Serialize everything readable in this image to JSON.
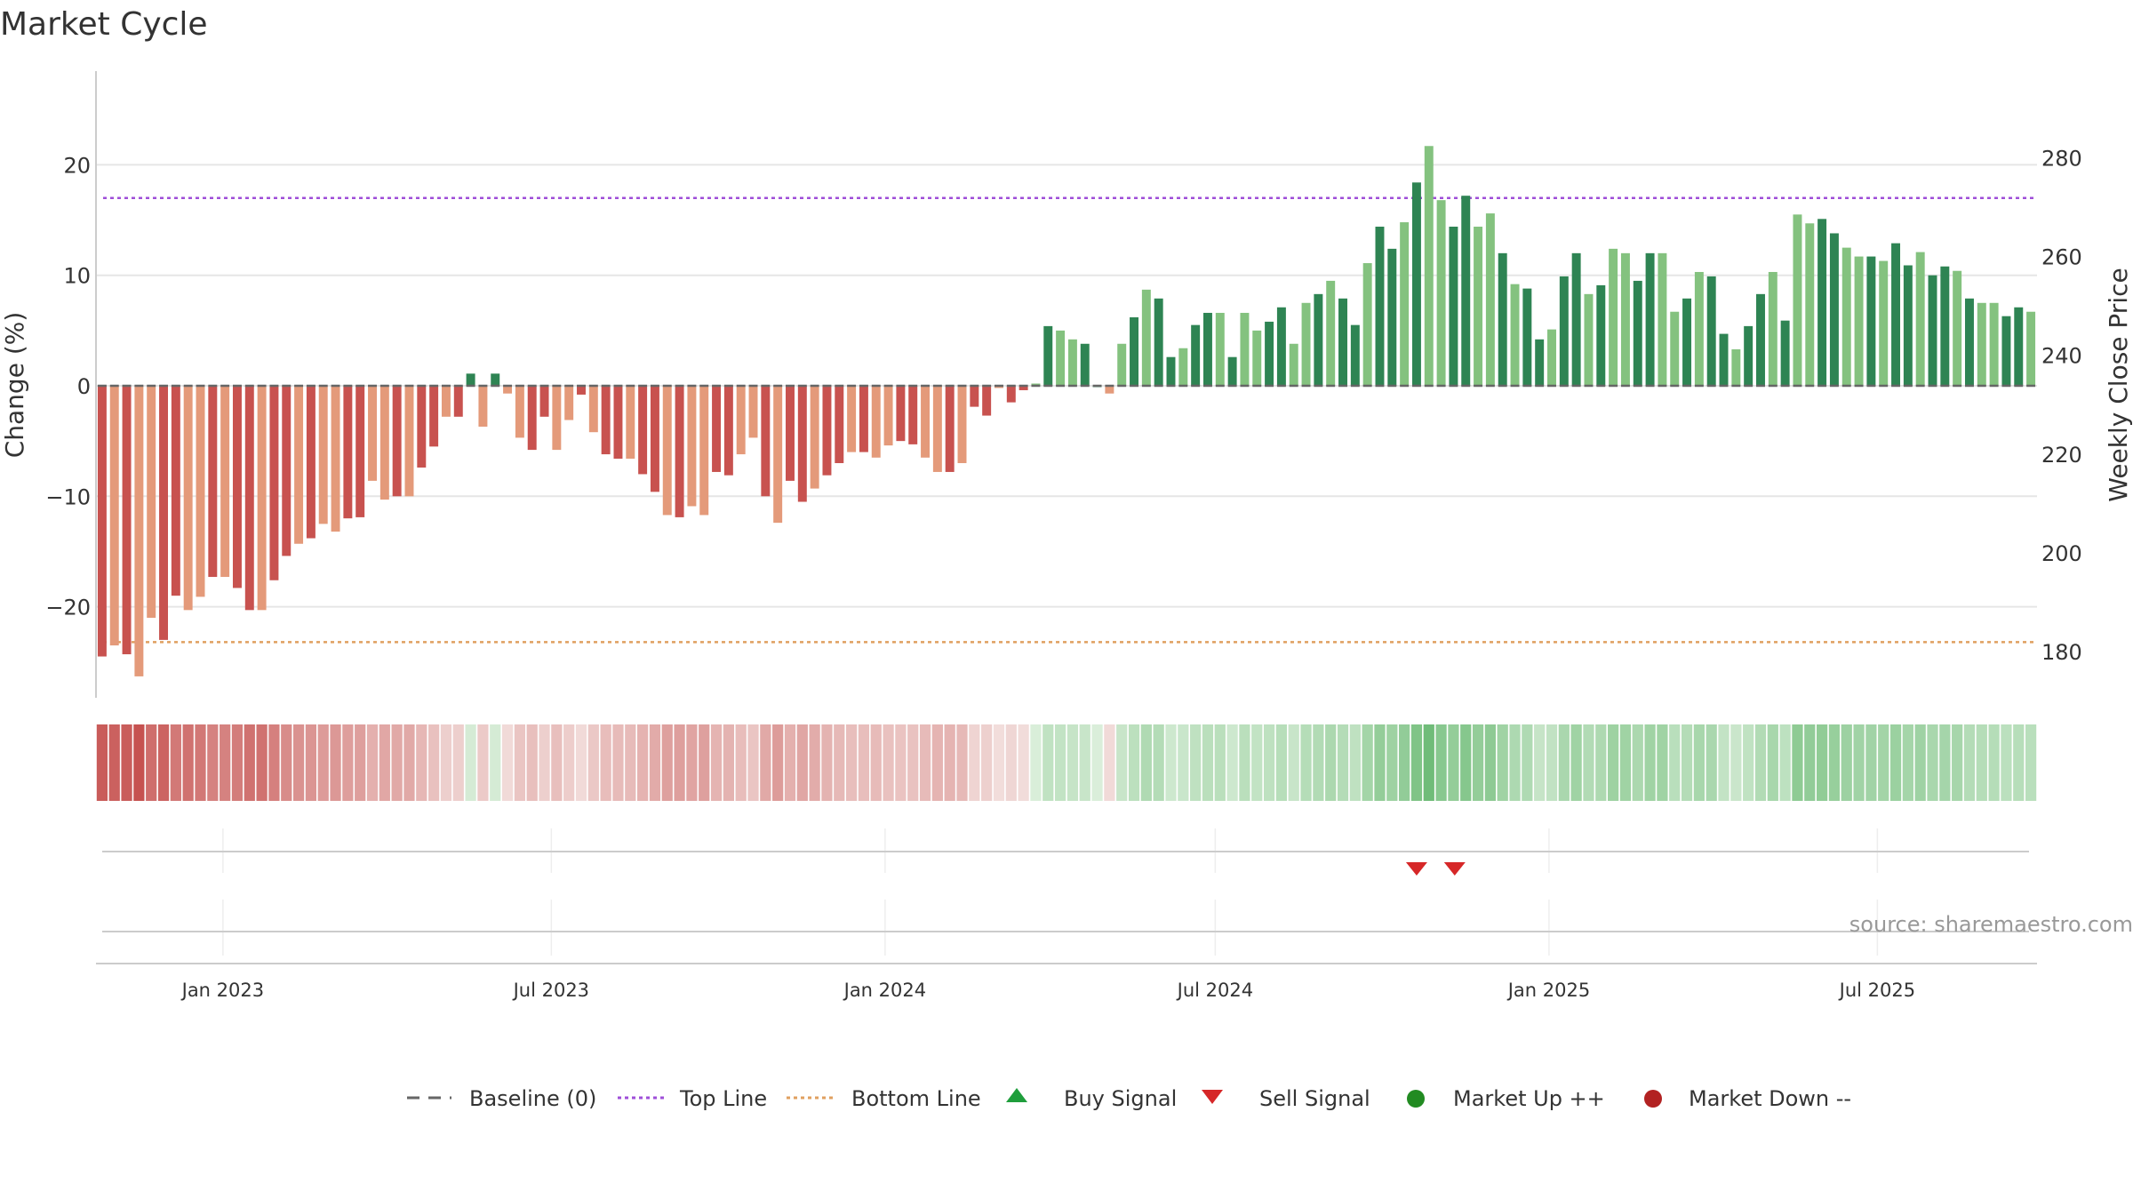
{
  "chart_data": {
    "type": "bar",
    "title": "Market Cycle",
    "ylabel": "Change (%)",
    "y2label": "Weekly Close Price",
    "ylim": [
      -28,
      28
    ],
    "y2lim": [
      170,
      290
    ],
    "yticks": [
      20,
      10,
      0,
      -10,
      -20
    ],
    "y2ticks": [
      280,
      260,
      240,
      220,
      200,
      180
    ],
    "grid": true,
    "top_line": 17,
    "bottom_line": -23.2,
    "xlim": [
      "2022-10-23",
      "2025-09-27"
    ],
    "x_ticks": [
      {
        "date": "2023-01-01",
        "label": "Jan 2023"
      },
      {
        "date": "2023-07-01",
        "label": "Jul 2023"
      },
      {
        "date": "2024-01-01",
        "label": "Jan 2024"
      },
      {
        "date": "2024-07-01",
        "label": "Jul 2024"
      },
      {
        "date": "2025-01-01",
        "label": "Jan 2025"
      },
      {
        "date": "2025-07-01",
        "label": "Jul 2025"
      }
    ],
    "start_week": "2022-10-23",
    "values": [
      -24.5,
      -23.5,
      -24.3,
      -26.3,
      -21,
      -23,
      -19,
      -20.3,
      -19.1,
      -17.3,
      -17.3,
      -18.3,
      -20.3,
      -20.3,
      -17.6,
      -15.4,
      -14.3,
      -13.8,
      -12.5,
      -13.2,
      -12,
      -11.9,
      -8.6,
      -10.3,
      -10,
      -10,
      -7.4,
      -5.5,
      -2.8,
      -2.8,
      1.1,
      -3.7,
      1.1,
      -0.7,
      -4.7,
      -5.8,
      -2.8,
      -5.8,
      -3.1,
      -0.8,
      -4.2,
      -6.2,
      -6.6,
      -6.6,
      -8,
      -9.6,
      -11.7,
      -11.9,
      -10.9,
      -11.7,
      -7.8,
      -8.1,
      -6.2,
      -4.7,
      -10,
      -12.4,
      -8.6,
      -10.5,
      -9.3,
      -8.1,
      -7,
      -6,
      -6,
      -6.5,
      -5.4,
      -5,
      -5.3,
      -6.5,
      -7.8,
      -7.8,
      -7,
      -1.9,
      -2.7,
      -0.2,
      -1.5,
      -0.4,
      0.2,
      5.4,
      5,
      4.2,
      3.8,
      0,
      -0.7,
      3.8,
      6.2,
      8.7,
      7.9,
      2.6,
      3.4,
      5.5,
      6.6,
      6.6,
      2.6,
      6.6,
      5,
      5.8,
      7.1,
      3.8,
      7.5,
      8.3,
      9.5,
      7.9,
      5.5,
      11.1,
      14.4,
      12.4,
      14.8,
      18.4,
      21.7,
      16.8,
      14.4,
      17.2,
      14.4,
      15.6,
      12,
      9.2,
      8.8,
      4.2,
      5.1,
      9.9,
      12,
      8.3,
      9.1,
      12.4,
      12,
      9.5,
      12,
      12,
      6.7,
      7.9,
      10.3,
      9.9,
      4.7,
      3.3,
      5.4,
      8.3,
      10.3,
      5.9,
      15.5,
      14.7,
      15.1,
      13.8,
      12.5,
      11.7,
      11.7,
      11.3,
      12.9,
      10.9,
      12.1,
      10,
      10.8,
      10.4,
      7.9,
      7.5,
      7.5,
      6.3,
      7.1,
      6.7
    ],
    "signals": [
      {
        "type": "sell",
        "date": "2024-10-20"
      },
      {
        "type": "sell",
        "date": "2024-11-10"
      }
    ],
    "legend": [
      "Baseline (0)",
      "Top Line",
      "Bottom Line",
      "Buy Signal",
      "Sell Signal",
      "Market Up ++",
      "Market Down --"
    ],
    "legend_position": "bottom",
    "source": "source: sharemaestro.com",
    "colors": {
      "red_dark": "#c8524f",
      "red_light": "#e49a7a",
      "green_dark": "#2e8453",
      "green_light": "#84c27f",
      "top_line": "#9f4fd8",
      "bottom_line": "#e0a060",
      "baseline": "#666666",
      "buy": "#1f9e3c",
      "sell": "#d62728",
      "market_up": "#228b22",
      "market_down": "#b22222"
    }
  }
}
